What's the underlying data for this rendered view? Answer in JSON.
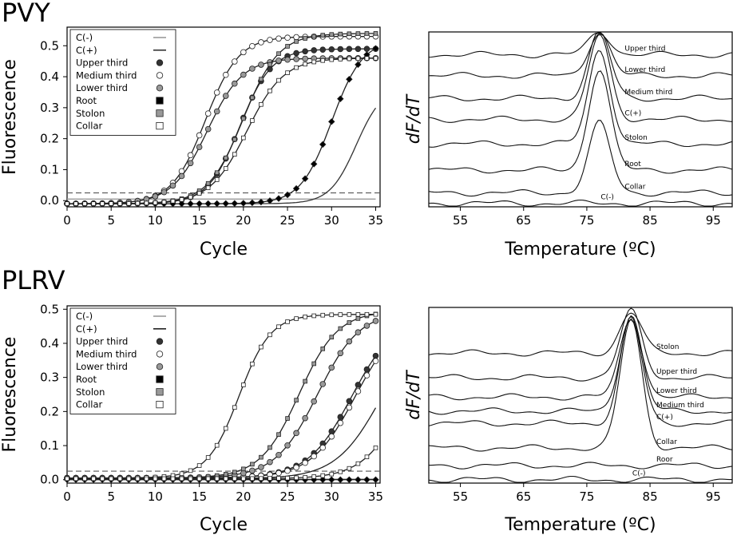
{
  "chart_data": [
    {
      "id": "pvy-amp",
      "panel": "PVY",
      "type": "line",
      "xlabel": "Cycle",
      "ylabel": "Fluorescence",
      "xlim": [
        0,
        35.5
      ],
      "ylim": [
        -0.02,
        0.56
      ],
      "xticks": [
        "0",
        "5",
        "10",
        "15",
        "20",
        "25",
        "30",
        "35"
      ],
      "yticks": [
        "0.0",
        "0.1",
        "0.2",
        "0.3",
        "0.4",
        "0.5"
      ],
      "threshold": 0.025,
      "legend_position": "top-left",
      "series": [
        {
          "name": "C(-)",
          "marker": "none",
          "line": "#999999",
          "midpoint": 60,
          "slope": 1.5,
          "max": 0.3,
          "base": 0.005
        },
        {
          "name": "C(+)",
          "marker": "none",
          "line": "#333333",
          "midpoint": 32.8,
          "slope": 1.5,
          "max": 0.38,
          "base": -0.01
        },
        {
          "name": "Upper third",
          "marker": "circle",
          "fill": "#333333",
          "midpoint": 19.6,
          "slope": 1.8,
          "max": 0.5,
          "base": -0.01
        },
        {
          "name": "Medium third",
          "marker": "circle",
          "fill": "#ffffff",
          "midpoint": 15.7,
          "slope": 1.9,
          "max": 0.54,
          "base": -0.01
        },
        {
          "name": "Lower third",
          "marker": "circle",
          "fill": "#999999",
          "midpoint": 15.9,
          "slope": 2.0,
          "max": 0.47,
          "base": -0.01
        },
        {
          "name": "Root",
          "marker": "square",
          "fill": "#000000",
          "midpoint": 30.0,
          "slope": 1.75,
          "max": 0.53,
          "base": -0.01
        },
        {
          "name": "Stolon",
          "marker": "square",
          "fill": "#999999",
          "midpoint": 20.0,
          "slope": 2.0,
          "max": 0.55,
          "base": -0.01
        },
        {
          "name": "Collar",
          "marker": "square",
          "fill": "#ffffff",
          "midpoint": 20.4,
          "slope": 2.1,
          "max": 0.47,
          "base": -0.01
        }
      ]
    },
    {
      "id": "pvy-melt",
      "panel": "PVY",
      "type": "line",
      "xlabel": "Temperature (ºC)",
      "ylabel": "dF/dT",
      "xlim": [
        50,
        98
      ],
      "xticks": [
        "55",
        "65",
        "75",
        "85",
        "95"
      ],
      "peak_temperature": 77,
      "curves": [
        {
          "name": "Upper third",
          "baseline": 0.87,
          "peak": 0.13
        },
        {
          "name": "Lower third",
          "baseline": 0.75,
          "peak": 0.25
        },
        {
          "name": "Medium third",
          "baseline": 0.62,
          "peak": 0.38
        },
        {
          "name": "C(+)",
          "baseline": 0.5,
          "peak": 0.48
        },
        {
          "name": "Stolon",
          "baseline": 0.36,
          "peak": 0.54
        },
        {
          "name": "Root",
          "baseline": 0.21,
          "peak": 0.58
        },
        {
          "name": "Collar",
          "baseline": 0.08,
          "peak": 0.4
        },
        {
          "name": "C(-)",
          "baseline": 0.02,
          "peak": 0
        }
      ]
    },
    {
      "id": "plrv-amp",
      "panel": "PLRV",
      "type": "line",
      "xlabel": "Cycle",
      "ylabel": "Fluorescence",
      "xlim": [
        0,
        35.5
      ],
      "ylim": [
        -0.01,
        0.51
      ],
      "xticks": [
        "0",
        "5",
        "10",
        "15",
        "20",
        "25",
        "30",
        "35"
      ],
      "yticks": [
        "0.0",
        "0.1",
        "0.2",
        "0.3",
        "0.4",
        "0.5"
      ],
      "threshold": 0.025,
      "legend_position": "top-left",
      "series": [
        {
          "name": "C(-)",
          "marker": "none",
          "line": "#999999",
          "midpoint": 60,
          "slope": 1.5,
          "max": 0.3,
          "base": 0.002
        },
        {
          "name": "C(+)",
          "marker": "none",
          "line": "#222222",
          "midpoint": 35.7,
          "slope": 2.6,
          "max": 0.48,
          "base": 0.003
        },
        {
          "name": "Upper third",
          "marker": "circle",
          "fill": "#333333",
          "midpoint": 32.3,
          "slope": 2.5,
          "max": 0.48,
          "base": 0.005
        },
        {
          "name": "Medium third",
          "marker": "circle",
          "fill": "#ffffff",
          "midpoint": 32.7,
          "slope": 2.5,
          "max": 0.48,
          "base": 0.005
        },
        {
          "name": "Lower third",
          "marker": "circle",
          "fill": "#999999",
          "midpoint": 28.4,
          "slope": 2.4,
          "max": 0.49,
          "base": 0.005
        },
        {
          "name": "Root",
          "marker": "square",
          "fill": "#000000",
          "midpoint": 60,
          "slope": 2.0,
          "max": 0.3,
          "base": 0.0
        },
        {
          "name": "Stolon",
          "marker": "square",
          "fill": "#999999",
          "midpoint": 26.3,
          "slope": 2.2,
          "max": 0.49,
          "base": 0.005
        },
        {
          "name": "Collar",
          "marker": "square",
          "fill": "#ffffff",
          "midpoint": 19.5,
          "slope": 1.8,
          "max": 0.48,
          "base": 0.005
        },
        {
          "name": "",
          "marker": "square",
          "fill": "#ffffff",
          "midpoint": 38.5,
          "slope": 2.4,
          "max": 0.48,
          "base": 0.003
        }
      ]
    },
    {
      "id": "plrv-melt",
      "panel": "PLRV",
      "type": "line",
      "xlabel": "Temperature (ºC)",
      "ylabel": "dF/dT",
      "xlim": [
        50,
        98
      ],
      "xticks": [
        "55",
        "65",
        "75",
        "85",
        "95"
      ],
      "peak_temperature": 82,
      "curves": [
        {
          "name": "Stolon",
          "baseline": 0.74,
          "peak": 0.23
        },
        {
          "name": "Upper third",
          "baseline": 0.6,
          "peak": 0.38
        },
        {
          "name": "Lower third",
          "baseline": 0.49,
          "peak": 0.45
        },
        {
          "name": "Medium third",
          "baseline": 0.41,
          "peak": 0.55
        },
        {
          "name": "C(+)",
          "baseline": 0.34,
          "peak": 0.6
        },
        {
          "name": "Collar",
          "baseline": 0.2,
          "peak": 0.73
        },
        {
          "name": "Roor",
          "baseline": 0.1,
          "peak": 0
        },
        {
          "name": "C(-)",
          "baseline": 0.02,
          "peak": 0
        }
      ]
    }
  ]
}
